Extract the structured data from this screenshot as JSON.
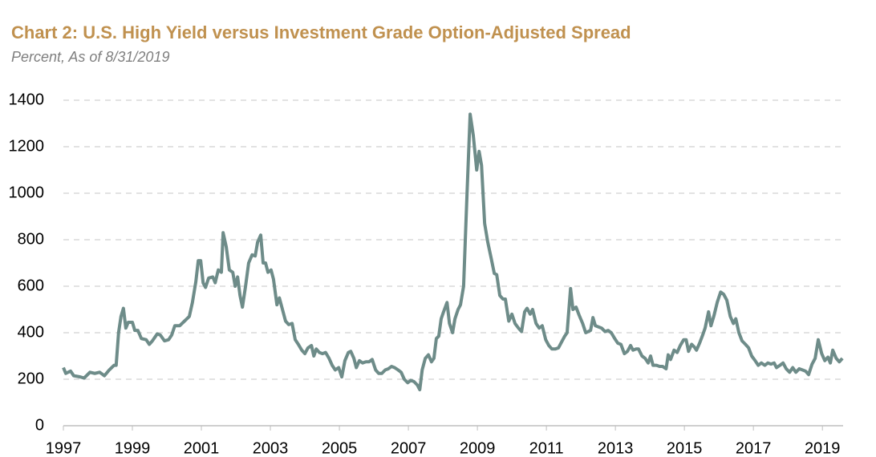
{
  "chart_data": {
    "type": "line",
    "title": "Chart 2: U.S. High Yield versus Investment Grade Option-Adjusted Spread",
    "subtitle": "Percent, As of 8/31/2019",
    "x": [
      1997.0,
      1997.07,
      1997.21,
      1997.3,
      1997.49,
      1997.6,
      1997.77,
      1997.91,
      1998.05,
      1998.19,
      1998.33,
      1998.47,
      1998.53,
      1998.6,
      1998.67,
      1998.74,
      1998.81,
      1998.88,
      1999.0,
      1999.07,
      1999.16,
      1999.26,
      1999.4,
      1999.49,
      1999.58,
      1999.72,
      1999.81,
      1999.93,
      2000.05,
      2000.14,
      2000.23,
      2000.37,
      2000.51,
      2000.65,
      2000.74,
      2000.84,
      2000.91,
      2000.98,
      2001.05,
      2001.12,
      2001.21,
      2001.33,
      2001.4,
      2001.49,
      2001.58,
      2001.63,
      2001.72,
      2001.81,
      2001.91,
      2001.98,
      2002.05,
      2002.12,
      2002.19,
      2002.28,
      2002.37,
      2002.47,
      2002.56,
      2002.63,
      2002.72,
      2002.79,
      2002.86,
      2002.93,
      2003.02,
      2003.09,
      2003.19,
      2003.26,
      2003.35,
      2003.44,
      2003.53,
      2003.63,
      2003.72,
      2003.81,
      2003.91,
      2004.0,
      2004.09,
      2004.19,
      2004.26,
      2004.33,
      2004.42,
      2004.51,
      2004.6,
      2004.7,
      2004.79,
      2004.88,
      2004.98,
      2005.07,
      2005.16,
      2005.26,
      2005.33,
      2005.42,
      2005.49,
      2005.58,
      2005.67,
      2005.77,
      2005.86,
      2005.95,
      2006.05,
      2006.14,
      2006.23,
      2006.33,
      2006.42,
      2006.51,
      2006.6,
      2006.7,
      2006.79,
      2006.88,
      2006.98,
      2007.07,
      2007.16,
      2007.26,
      2007.33,
      2007.4,
      2007.49,
      2007.58,
      2007.67,
      2007.74,
      2007.81,
      2007.88,
      2007.95,
      2008.02,
      2008.12,
      2008.19,
      2008.28,
      2008.35,
      2008.44,
      2008.51,
      2008.6,
      2008.7,
      2008.79,
      2008.88,
      2008.98,
      2009.05,
      2009.12,
      2009.21,
      2009.3,
      2009.4,
      2009.49,
      2009.56,
      2009.65,
      2009.74,
      2009.81,
      2009.91,
      2010.0,
      2010.09,
      2010.19,
      2010.28,
      2010.37,
      2010.44,
      2010.53,
      2010.6,
      2010.7,
      2010.79,
      2010.88,
      2010.98,
      2011.07,
      2011.16,
      2011.26,
      2011.35,
      2011.44,
      2011.53,
      2011.6,
      2011.7,
      2011.77,
      2011.86,
      2011.95,
      2012.05,
      2012.14,
      2012.21,
      2012.28,
      2012.35,
      2012.42,
      2012.51,
      2012.6,
      2012.7,
      2012.79,
      2012.88,
      2012.98,
      2013.07,
      2013.16,
      2013.26,
      2013.35,
      2013.44,
      2013.51,
      2013.6,
      2013.67,
      2013.77,
      2013.86,
      2013.95,
      2014.02,
      2014.09,
      2014.19,
      2014.28,
      2014.37,
      2014.47,
      2014.53,
      2014.6,
      2014.7,
      2014.79,
      2014.88,
      2014.98,
      2015.05,
      2015.12,
      2015.21,
      2015.28,
      2015.35,
      2015.44,
      2015.53,
      2015.6,
      2015.7,
      2015.77,
      2015.86,
      2015.95,
      2016.05,
      2016.14,
      2016.23,
      2016.33,
      2016.42,
      2016.49,
      2016.58,
      2016.67,
      2016.77,
      2016.86,
      2016.95,
      2017.05,
      2017.14,
      2017.23,
      2017.33,
      2017.42,
      2017.51,
      2017.6,
      2017.67,
      2017.77,
      2017.86,
      2017.95,
      2018.05,
      2018.14,
      2018.23,
      2018.33,
      2018.42,
      2018.51,
      2018.6,
      2018.7,
      2018.79,
      2018.88,
      2018.98,
      2019.07,
      2019.16,
      2019.23,
      2019.3,
      2019.4,
      2019.49,
      2019.58
    ],
    "values": [
      250,
      225,
      235,
      215,
      210,
      205,
      230,
      225,
      230,
      215,
      240,
      260,
      260,
      400,
      470,
      505,
      420,
      445,
      445,
      410,
      410,
      375,
      370,
      350,
      365,
      395,
      390,
      365,
      370,
      390,
      430,
      430,
      450,
      470,
      530,
      620,
      710,
      710,
      615,
      595,
      635,
      640,
      615,
      670,
      660,
      830,
      770,
      670,
      660,
      600,
      640,
      560,
      510,
      600,
      700,
      735,
      730,
      790,
      820,
      700,
      700,
      660,
      670,
      630,
      520,
      550,
      500,
      450,
      435,
      440,
      370,
      350,
      325,
      310,
      335,
      345,
      300,
      330,
      315,
      310,
      315,
      290,
      260,
      240,
      250,
      210,
      280,
      315,
      320,
      290,
      250,
      280,
      270,
      275,
      275,
      285,
      240,
      225,
      225,
      240,
      245,
      255,
      250,
      240,
      230,
      200,
      185,
      195,
      190,
      175,
      155,
      240,
      290,
      305,
      275,
      290,
      375,
      385,
      460,
      490,
      530,
      440,
      400,
      460,
      500,
      520,
      600,
      1000,
      1340,
      1250,
      1100,
      1180,
      1120,
      870,
      790,
      720,
      655,
      650,
      560,
      545,
      545,
      450,
      480,
      440,
      420,
      405,
      490,
      505,
      480,
      500,
      440,
      420,
      430,
      370,
      345,
      330,
      330,
      335,
      360,
      385,
      400,
      590,
      500,
      510,
      475,
      440,
      400,
      405,
      410,
      465,
      430,
      425,
      420,
      405,
      410,
      400,
      375,
      355,
      350,
      310,
      320,
      345,
      325,
      330,
      330,
      300,
      290,
      270,
      300,
      260,
      260,
      255,
      255,
      245,
      305,
      285,
      325,
      315,
      345,
      370,
      370,
      320,
      350,
      340,
      325,
      355,
      390,
      420,
      490,
      430,
      475,
      530,
      575,
      565,
      540,
      470,
      440,
      460,
      400,
      365,
      350,
      335,
      300,
      280,
      260,
      270,
      260,
      270,
      265,
      270,
      250,
      260,
      270,
      245,
      230,
      250,
      230,
      245,
      240,
      235,
      220,
      265,
      290,
      370,
      310,
      280,
      295,
      270,
      325,
      290,
      275,
      290
    ],
    "color": "#6e8c89",
    "xlim": [
      1997,
      2019.6
    ],
    "xticks": [
      1997,
      1999,
      2001,
      2003,
      2005,
      2007,
      2009,
      2011,
      2013,
      2015,
      2017,
      2019
    ],
    "ylim": [
      0,
      1400
    ],
    "yticks": [
      0,
      200,
      400,
      600,
      800,
      1000,
      1200,
      1400
    ],
    "grid": true
  }
}
